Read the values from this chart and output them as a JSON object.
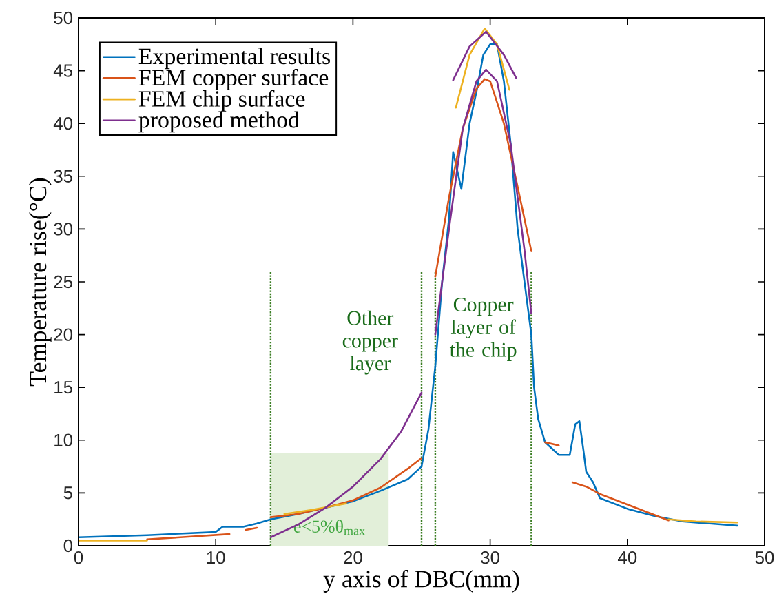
{
  "chart_data": {
    "type": "line",
    "xlabel": "y axis of DBC(mm)",
    "ylabel": "Temperature rise(°C)",
    "xlim": [
      0,
      50
    ],
    "ylim": [
      0,
      50
    ],
    "xticks": [
      0,
      10,
      20,
      30,
      40,
      50
    ],
    "yticks": [
      0,
      5,
      10,
      15,
      20,
      25,
      30,
      35,
      40,
      45,
      50
    ],
    "legend": "top left",
    "series": [
      {
        "name": "Experimental results",
        "color": "#0072bd",
        "x": [
          0,
          5,
          10,
          10.5,
          11,
          12,
          13,
          14,
          16,
          18,
          20,
          22,
          24,
          25,
          25.5,
          26,
          26.5,
          27,
          27.3,
          27.9,
          28.5,
          29,
          29.5,
          30,
          30.5,
          31,
          31.5,
          32,
          32.5,
          33,
          33.2,
          33.5,
          34,
          34.5,
          35,
          35.8,
          36.2,
          36.5,
          36.8,
          37,
          37.5,
          38,
          40,
          42,
          44,
          46,
          48
        ],
        "values": [
          0.8,
          1.0,
          1.3,
          1.8,
          1.8,
          1.8,
          2.1,
          2.5,
          3.0,
          3.6,
          4.2,
          5.2,
          6.3,
          7.5,
          11,
          17,
          25,
          31,
          37.3,
          33.8,
          40,
          43,
          46.5,
          47.5,
          47.5,
          44,
          38,
          30,
          25,
          20,
          15,
          12,
          9.8,
          9.2,
          8.6,
          8.6,
          11.5,
          11.8,
          9,
          7,
          6,
          4.5,
          3.5,
          2.8,
          2.3,
          2.1,
          1.9
        ]
      },
      {
        "name": "FEM copper surface",
        "color": "#d95319",
        "x": [
          5,
          8,
          11,
          11.5,
          12.2,
          13,
          13.5,
          14,
          16,
          18,
          20,
          22,
          24,
          25,
          25.5,
          26,
          27,
          28,
          29,
          29.6,
          30,
          31,
          32,
          33,
          33.5,
          34,
          35,
          35.5,
          36,
          37,
          38,
          40,
          42,
          43
        ],
        "values": [
          0.6,
          0.85,
          1.1,
          null,
          1.5,
          1.7,
          null,
          2.7,
          3.0,
          3.6,
          4.3,
          5.5,
          7.3,
          8.3,
          null,
          25.5,
          33,
          39.5,
          43.3,
          44.2,
          44,
          40,
          34,
          27.9,
          null,
          9.8,
          9.5,
          null,
          6.0,
          5.6,
          4.9,
          3.9,
          2.9,
          2.4
        ]
      },
      {
        "name": "FEM chip surface",
        "color": "#edb120",
        "x": [
          0,
          5,
          10,
          15,
          17,
          19.5,
          25,
          27.5,
          28.5,
          29.6,
          30.5,
          31.4,
          40,
          43,
          45,
          48
        ],
        "values": [
          0.5,
          0.5,
          null,
          3.0,
          3.4,
          4.0,
          null,
          41.5,
          46.5,
          49.0,
          47.5,
          43.2,
          null,
          2.5,
          2.3,
          2.2
        ]
      },
      {
        "name": "proposed method",
        "color": "#7e2f8e",
        "x": [
          14,
          16,
          18,
          20,
          22,
          23.5,
          25,
          25.5,
          26,
          27,
          28,
          29,
          29.7,
          30.5,
          31.5,
          32.5,
          33,
          30,
          27.3,
          28.5,
          29.7,
          31,
          31.9
        ],
        "values": [
          0.8,
          2.0,
          3.6,
          5.6,
          8.2,
          10.8,
          14.5,
          null,
          20,
          30,
          39.5,
          44,
          45.1,
          44,
          38,
          28,
          22,
          null,
          44.1,
          47.3,
          48.7,
          46.5,
          44.3
        ]
      }
    ],
    "ref_lines": [
      {
        "axis": "x",
        "value": 14,
        "color": "#3a7d22",
        "line_style": "dotted"
      },
      {
        "axis": "x",
        "value": 25,
        "color": "#3a7d22",
        "line_style": "dotted"
      },
      {
        "axis": "x",
        "value": 26,
        "color": "#3a7d22",
        "line_style": "dotted"
      },
      {
        "axis": "x",
        "value": 33,
        "color": "#3a7d22",
        "line_style": "dotted"
      }
    ],
    "bands": [
      {
        "axis": "x",
        "from": 14,
        "to": 22.6,
        "label": "e<5%θ$_{max}$",
        "color": "#e2efd9"
      }
    ],
    "annotations": [
      "Other copper layer",
      "Copper layer of the chip"
    ]
  }
}
